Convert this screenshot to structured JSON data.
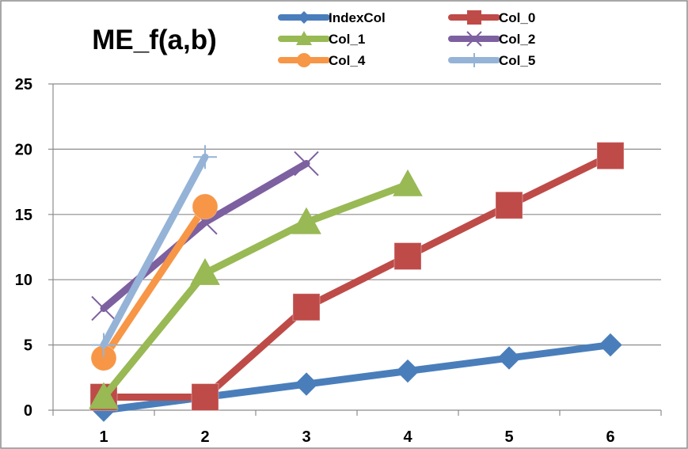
{
  "chart_data": {
    "type": "line",
    "title": "ME_f(a,b)",
    "xlabel": "",
    "ylabel": "",
    "x": [
      1,
      2,
      3,
      4,
      5,
      6
    ],
    "x_tick_labels": [
      "1",
      "2",
      "3",
      "4",
      "5",
      "6"
    ],
    "ylim": [
      0,
      25
    ],
    "y_ticks": [
      0,
      5,
      10,
      15,
      20,
      25
    ],
    "y_tick_labels": [
      "0",
      "5",
      "10",
      "15",
      "20",
      "25"
    ],
    "grid": "horizontal",
    "legend_position": "top",
    "series": [
      {
        "name": "IndexCol",
        "color": "#4a7ebb",
        "marker": "diamond",
        "x": [
          1,
          2,
          3,
          4,
          5,
          6
        ],
        "values": [
          0,
          1,
          2,
          3,
          4,
          5
        ]
      },
      {
        "name": "Col_0",
        "color": "#be4b48",
        "marker": "square",
        "x": [
          1,
          2,
          3,
          4,
          5,
          6
        ],
        "values": [
          1,
          1,
          7.9,
          11.8,
          15.7,
          19.5
        ]
      },
      {
        "name": "Col_1",
        "color": "#98b954",
        "marker": "triangle",
        "x": [
          1,
          2,
          3,
          4
        ],
        "values": [
          1,
          10.5,
          14.4,
          17.3
        ]
      },
      {
        "name": "Col_2",
        "color": "#7d60a0",
        "marker": "x",
        "x": [
          1,
          2,
          3
        ],
        "values": [
          7.8,
          14.4,
          18.9
        ]
      },
      {
        "name": "Col_4",
        "color": "#f79646",
        "marker": "circle",
        "x": [
          1,
          2
        ],
        "values": [
          4,
          15.6
        ]
      },
      {
        "name": "Col_5",
        "color": "#95b3d7",
        "marker": "plus",
        "x": [
          1,
          2
        ],
        "values": [
          5,
          19.4
        ]
      }
    ]
  }
}
